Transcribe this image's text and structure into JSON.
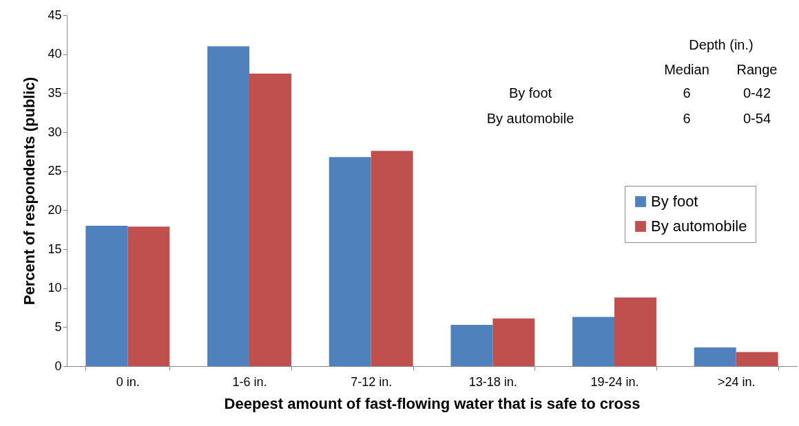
{
  "chart_data": {
    "type": "bar",
    "xlabel": "Deepest amount of fast-flowing water that is safe to cross",
    "ylabel": "Percent of respondents (public)",
    "categories": [
      "0 in.",
      "1-6 in.",
      "7-12 in.",
      "13-18 in.",
      "19-24 in.",
      ">24 in."
    ],
    "series": [
      {
        "name": "By foot",
        "color": "#4f81bd",
        "values": [
          18,
          41,
          26.8,
          5.3,
          6.3,
          2.4
        ]
      },
      {
        "name": "By automobile",
        "color": "#c0504d",
        "values": [
          17.9,
          37.5,
          27.6,
          6.1,
          8.8,
          1.8
        ]
      }
    ],
    "ylim": [
      0,
      45
    ],
    "yticks": [
      0,
      5,
      10,
      15,
      20,
      25,
      30,
      35,
      40,
      45
    ],
    "grid": false,
    "legend": "right",
    "annotations": [
      "Depth (in.)",
      "Median",
      "Range",
      "By foot",
      "6",
      "0-42",
      "By automobile",
      "6",
      "0-54"
    ]
  }
}
